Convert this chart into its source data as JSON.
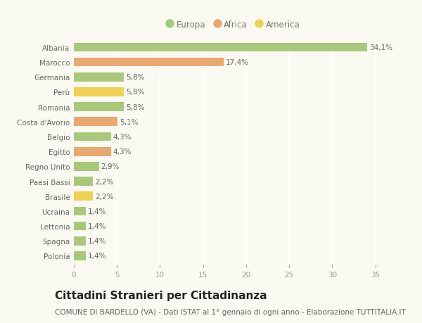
{
  "categories": [
    "Albania",
    "Marocco",
    "Germania",
    "Perù",
    "Romania",
    "Costa d'Avorio",
    "Belgio",
    "Egitto",
    "Regno Unito",
    "Paesi Bassi",
    "Brasile",
    "Ucraina",
    "Lettonia",
    "Spagna",
    "Polonia"
  ],
  "values": [
    34.1,
    17.4,
    5.8,
    5.8,
    5.8,
    5.1,
    4.3,
    4.3,
    2.9,
    2.2,
    2.2,
    1.4,
    1.4,
    1.4,
    1.4
  ],
  "labels": [
    "34,1%",
    "17,4%",
    "5,8%",
    "5,8%",
    "5,8%",
    "5,1%",
    "4,3%",
    "4,3%",
    "2,9%",
    "2,2%",
    "2,2%",
    "1,4%",
    "1,4%",
    "1,4%",
    "1,4%"
  ],
  "continents": [
    "Europa",
    "Africa",
    "Europa",
    "America",
    "Europa",
    "Africa",
    "Europa",
    "Africa",
    "Europa",
    "Europa",
    "America",
    "Europa",
    "Europa",
    "Europa",
    "Europa"
  ],
  "colors": {
    "Europa": "#a8c87a",
    "Africa": "#e8a870",
    "America": "#f0d050"
  },
  "title": "Cittadini Stranieri per Cittadinanza",
  "subtitle": "COMUNE DI BARDELLO (VA) - Dati ISTAT al 1° gennaio di ogni anno - Elaborazione TUTTITALIA.IT",
  "xlim": [
    0,
    37
  ],
  "xticks": [
    0,
    5,
    10,
    15,
    20,
    25,
    30,
    35
  ],
  "background_color": "#fafaf2",
  "grid_color": "#ffffff",
  "bar_height": 0.6,
  "title_fontsize": 11,
  "subtitle_fontsize": 7.5,
  "label_fontsize": 7.5,
  "tick_fontsize": 7.5,
  "legend_fontsize": 8.5,
  "legend_entries": [
    "Europa",
    "Africa",
    "America"
  ]
}
